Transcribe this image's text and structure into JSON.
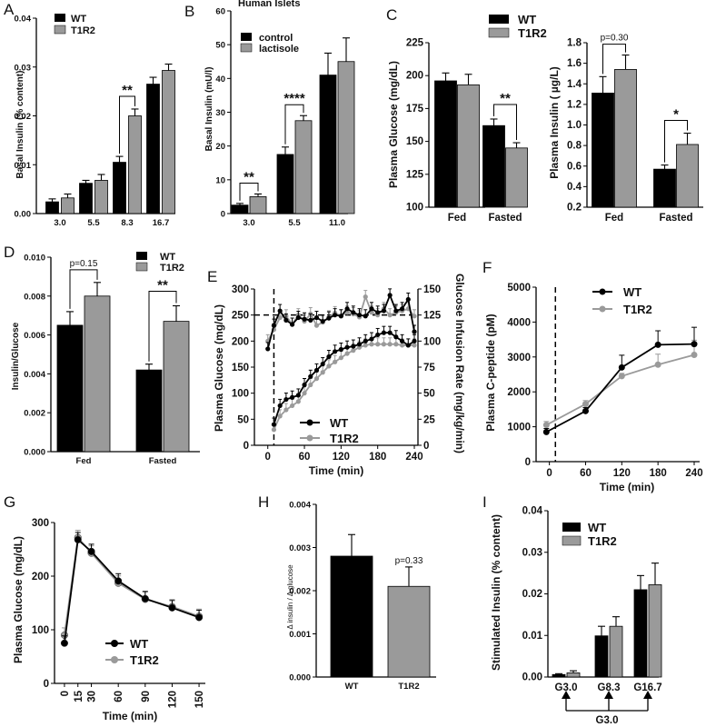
{
  "figure": {
    "colors": {
      "wt": "#000000",
      "t1r2": "#9a9a9a",
      "control": "#000000",
      "lactisole": "#9a9a9a"
    }
  },
  "chart_data": [
    {
      "id": "A",
      "panel_label": "A",
      "type": "bar",
      "ylabel": "Basal Insulin (% content)",
      "ylim": [
        0,
        0.04
      ],
      "yticks": [
        "0.00",
        "0.01",
        "0.02",
        "0.03",
        "0.04"
      ],
      "categories": [
        "3.0",
        "5.5",
        "8.3",
        "16.7"
      ],
      "series": [
        {
          "name": "WT",
          "values": [
            0.0024,
            0.0062,
            0.0105,
            0.0265
          ],
          "errors": [
            0.0006,
            0.0006,
            0.0012,
            0.0014
          ]
        },
        {
          "name": "T1R2",
          "values": [
            0.0032,
            0.0068,
            0.02,
            0.0293
          ],
          "errors": [
            0.0008,
            0.0012,
            0.0014,
            0.0013
          ]
        }
      ],
      "legend": [
        "WT",
        "T1R2"
      ],
      "annotations": [
        {
          "text": "**",
          "between": "8.3"
        }
      ]
    },
    {
      "id": "B",
      "panel_label": "B",
      "type": "bar",
      "title": "Human Islets",
      "ylabel": "Basal Insulin (mU/l)",
      "ylim": [
        0,
        60
      ],
      "yticks": [
        "0",
        "10",
        "20",
        "30",
        "40",
        "50",
        "60"
      ],
      "categories": [
        "3.0",
        "5.5",
        "11.0"
      ],
      "series": [
        {
          "name": "control",
          "values": [
            2.5,
            17.5,
            41
          ],
          "errors": [
            0.5,
            2.2,
            6.5
          ]
        },
        {
          "name": "lactisole",
          "values": [
            5.0,
            27.5,
            45
          ],
          "errors": [
            0.8,
            1.5,
            7
          ]
        }
      ],
      "legend": [
        "control",
        "lactisole"
      ],
      "annotations": [
        {
          "text": "**",
          "between": "3.0"
        },
        {
          "text": "****",
          "between": "5.5"
        }
      ]
    },
    {
      "id": "C1",
      "panel_label": "C",
      "type": "bar",
      "ylabel": "Plasma Glucose  (mg/dL)",
      "ylim": [
        100,
        225
      ],
      "yticks": [
        "100",
        "125",
        "150",
        "175",
        "200",
        "225"
      ],
      "categories": [
        "Fed",
        "Fasted"
      ],
      "series": [
        {
          "name": "WT",
          "values": [
            196,
            162
          ],
          "errors": [
            6,
            5
          ]
        },
        {
          "name": "T1R2",
          "values": [
            193,
            145
          ],
          "errors": [
            8,
            4
          ]
        }
      ],
      "legend": [
        "WT",
        "T1R2"
      ],
      "annotations": [
        {
          "text": "**",
          "between": "Fasted"
        }
      ]
    },
    {
      "id": "C2",
      "type": "bar",
      "ylabel": "Plasma Insulin ( µg/L)",
      "ylim": [
        0.2,
        1.8
      ],
      "yticks": [
        "0.2",
        "0.4",
        "0.6",
        "0.8",
        "1.0",
        "1.2",
        "1.4",
        "1.6",
        "1.8"
      ],
      "categories": [
        "Fed",
        "Fasted"
      ],
      "series": [
        {
          "name": "WT",
          "values": [
            1.31,
            0.57
          ],
          "errors": [
            0.16,
            0.04
          ]
        },
        {
          "name": "T1R2",
          "values": [
            1.54,
            0.81
          ],
          "errors": [
            0.14,
            0.11
          ]
        }
      ],
      "annotations": [
        {
          "text": "p=0.30",
          "between": "Fed"
        },
        {
          "text": "*",
          "between": "Fasted"
        }
      ]
    },
    {
      "id": "D",
      "panel_label": "D",
      "type": "bar",
      "ylabel": "Insulin/Glucose",
      "ylim": [
        0,
        0.01
      ],
      "yticks": [
        "0.000",
        "0.002",
        "0.004",
        "0.006",
        "0.008",
        "0.010"
      ],
      "categories": [
        "Fed",
        "Fasted"
      ],
      "series": [
        {
          "name": "WT",
          "values": [
            0.0065,
            0.0042
          ],
          "errors": [
            0.0007,
            0.0003
          ]
        },
        {
          "name": "T1R2",
          "values": [
            0.008,
            0.0067
          ],
          "errors": [
            0.0007,
            0.0008
          ]
        }
      ],
      "legend": [
        "WT",
        "T1R2"
      ],
      "annotations": [
        {
          "text": "p=0.15",
          "between": "Fed"
        },
        {
          "text": "**",
          "between": "Fasted"
        }
      ]
    },
    {
      "id": "E",
      "panel_label": "E",
      "type": "line",
      "xlabel": "Time (min)",
      "ylabel": "Plasma Glucose  (mg/dL)",
      "ylabel_right": "Glucose Infusion Rate  (mg/kg/min)",
      "xlim": [
        -10,
        240
      ],
      "xticks": [
        "0",
        "60",
        "120",
        "180",
        "240"
      ],
      "ylim": [
        0,
        300
      ],
      "yticks": [
        "0",
        "50",
        "100",
        "150",
        "200",
        "250",
        "300"
      ],
      "ylim_right": [
        0,
        150
      ],
      "yticks_right": [
        "0",
        "25",
        "50",
        "75",
        "100",
        "125",
        "150"
      ],
      "reference_lines": [
        {
          "orientation": "h",
          "value": 250
        },
        {
          "orientation": "v",
          "value": 10
        }
      ],
      "glucose_x": [
        0,
        10,
        20,
        30,
        40,
        50,
        60,
        70,
        80,
        90,
        100,
        110,
        120,
        130,
        140,
        150,
        160,
        170,
        180,
        190,
        200,
        210,
        220,
        230,
        240
      ],
      "infusion_x": [
        10,
        20,
        30,
        40,
        50,
        60,
        70,
        80,
        90,
        100,
        110,
        120,
        130,
        140,
        150,
        160,
        170,
        180,
        190,
        200,
        210,
        220,
        230,
        240
      ],
      "series": [
        {
          "name": "WT glucose",
          "axis": "left",
          "values": [
            185,
            230,
            258,
            240,
            232,
            245,
            242,
            240,
            245,
            238,
            244,
            250,
            248,
            262,
            255,
            250,
            248,
            262,
            255,
            258,
            288,
            258,
            262,
            280,
            218
          ]
        },
        {
          "name": "T1R2 glucose",
          "axis": "left",
          "values": [
            200,
            222,
            245,
            248,
            232,
            250,
            238,
            252,
            230,
            236,
            246,
            254,
            248,
            255,
            252,
            246,
            285,
            255,
            250,
            262,
            250,
            255,
            258,
            262,
            248
          ]
        },
        {
          "name": "WT infusion",
          "axis": "right",
          "values": [
            20,
            38,
            44,
            46,
            48,
            58,
            66,
            72,
            78,
            85,
            90,
            92,
            94,
            95,
            97,
            100,
            102,
            106,
            108,
            108,
            104,
            100,
            96,
            100
          ]
        },
        {
          "name": "T1R2 infusion",
          "axis": "right",
          "values": [
            15,
            28,
            34,
            38,
            42,
            50,
            58,
            64,
            70,
            76,
            80,
            84,
            88,
            91,
            94,
            96,
            97,
            97,
            97,
            97,
            97,
            96,
            96,
            96
          ]
        }
      ],
      "legend": [
        "WT",
        "T1R2"
      ]
    },
    {
      "id": "F",
      "panel_label": "F",
      "type": "line",
      "xlabel": "Time (min)",
      "ylabel": "Plasma C-peptide (pM)",
      "xlim": [
        -10,
        240
      ],
      "xticks": [
        "0",
        "60",
        "120",
        "180",
        "240"
      ],
      "ylim": [
        0,
        5000
      ],
      "yticks": [
        "0",
        "1000",
        "2000",
        "3000",
        "4000",
        "5000"
      ],
      "x": [
        -5,
        60,
        120,
        180,
        240
      ],
      "series": [
        {
          "name": "WT",
          "values": [
            850,
            1450,
            2700,
            3350,
            3370
          ],
          "errors": [
            100,
            100,
            350,
            400,
            480
          ]
        },
        {
          "name": "T1R2",
          "values": [
            1050,
            1650,
            2450,
            2780,
            3060
          ],
          "errors": [
            100,
            100,
            80,
            300,
            420
          ]
        }
      ],
      "reference_lines": [
        {
          "orientation": "v",
          "value": 10
        }
      ],
      "legend": [
        "WT",
        "T1R2"
      ]
    },
    {
      "id": "G",
      "panel_label": "G",
      "type": "line",
      "xlabel": "Time (min)",
      "ylabel": "Plasma Glucose  (mg/dL)",
      "xlim": [
        -5,
        155
      ],
      "xticks": [
        "0",
        "15",
        "30",
        "60",
        "90",
        "120",
        "150"
      ],
      "ylim": [
        0,
        300
      ],
      "yticks": [
        "0",
        "100",
        "200",
        "300"
      ],
      "x": [
        0,
        15,
        30,
        60,
        90,
        120,
        150
      ],
      "series": [
        {
          "name": "WT",
          "values": [
            75,
            268,
            246,
            191,
            158,
            141,
            123
          ]
        },
        {
          "name": "T1R2",
          "values": [
            90,
            272,
            243,
            187,
            157,
            143,
            125
          ]
        }
      ],
      "legend": [
        "WT",
        "T1R2"
      ]
    },
    {
      "id": "H",
      "panel_label": "H",
      "type": "bar",
      "ylabel": "Δ insulin / Δ glucose",
      "ylim": [
        0,
        0.004
      ],
      "yticks": [
        "0.000",
        "0.001",
        "0.002",
        "0.003",
        "0.004"
      ],
      "categories": [
        "WT",
        "T1R2"
      ],
      "values": [
        0.0028,
        0.0021
      ],
      "errors": [
        0.0005,
        0.00045
      ],
      "annotations": [
        {
          "text": "p=0.33",
          "between": "T1R2"
        }
      ]
    },
    {
      "id": "I",
      "panel_label": "I",
      "type": "bar",
      "ylabel": "Stimulated Insulin (% content)",
      "ylim": [
        0,
        0.04
      ],
      "yticks": [
        "0.00",
        "0.01",
        "0.02",
        "0.03",
        "0.04"
      ],
      "categories": [
        "G3.0",
        "G8.3",
        "G16.7"
      ],
      "series": [
        {
          "name": "WT",
          "values": [
            0.0006,
            0.0099,
            0.021
          ],
          "errors": [
            0.0002,
            0.0023,
            0.0034
          ]
        },
        {
          "name": "T1R2",
          "values": [
            0.001,
            0.0122,
            0.0222
          ],
          "errors": [
            0.0005,
            0.0023,
            0.0052
          ]
        }
      ],
      "legend": [
        "WT",
        "T1R2"
      ],
      "annotations": [
        {
          "text": "G3.0",
          "role": "washout bracket label"
        }
      ]
    }
  ]
}
